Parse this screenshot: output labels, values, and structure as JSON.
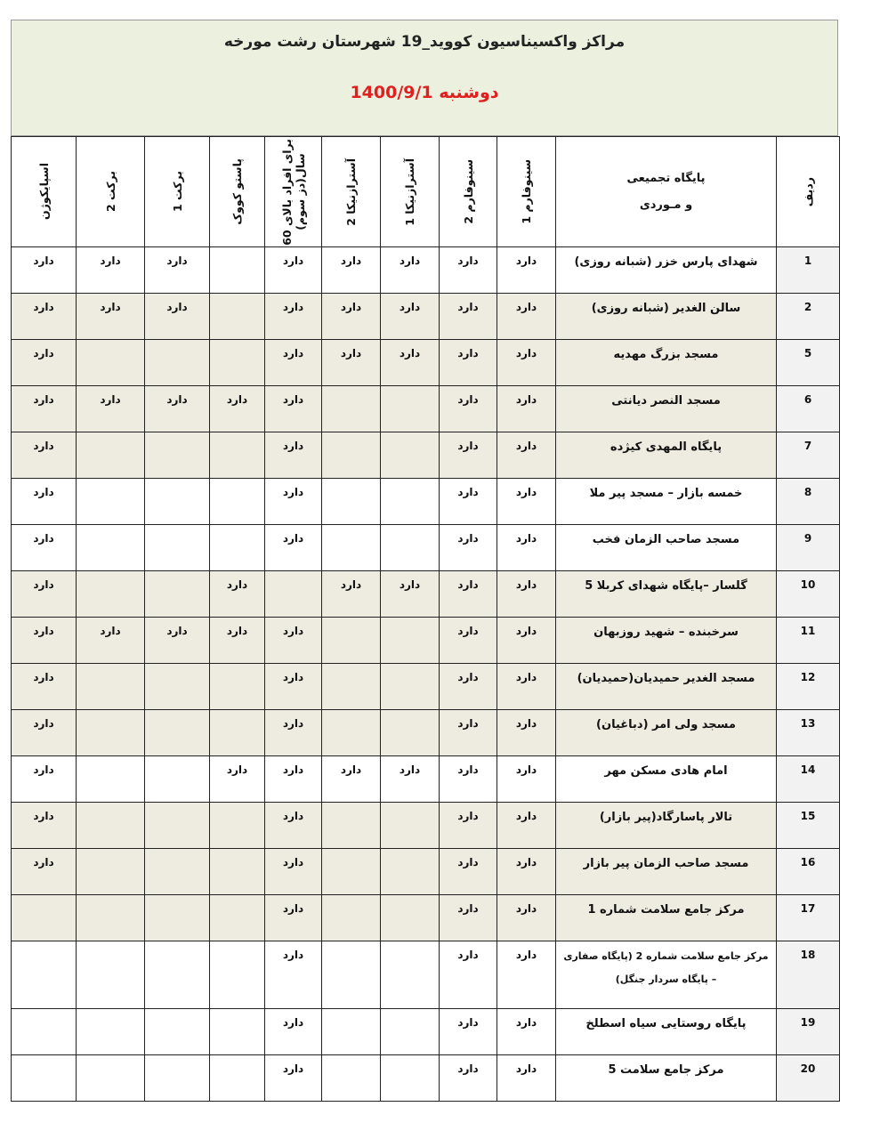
{
  "title": "مراکز واکسیناسیون کووید_19 شهرستان رشت مورخه",
  "date": "دوشنبه 1400/9/1",
  "headers": [
    "ردیف",
    "پایگاه تجمیعی\n\nو مـوردی",
    "سینوفارم 1",
    "سینوفارم 2",
    "آسترازنیکا 1",
    "آسترازنیکا 2",
    "برای افراد بالای 60\nسال(دز سوم)",
    "پاستو کووک",
    "برکت 1",
    "برکت 2",
    "اسپایکوژن"
  ],
  "mark": "دارد",
  "colors": {
    "title_bg": "#ebf1de",
    "date": "#e02020",
    "row_shade": "#eeebe0"
  },
  "rows": [
    {
      "n": "1",
      "name": "شهدای پارس خزر (شبانه روزی)",
      "v": [
        1,
        1,
        1,
        1,
        1,
        0,
        1,
        1,
        1
      ]
    },
    {
      "n": "2",
      "name": "سالن الغدیر (شبانه روزی)",
      "v": [
        1,
        1,
        1,
        1,
        1,
        0,
        1,
        1,
        1
      ]
    },
    {
      "n": "5",
      "name": "مسجد بزرگ مهدیه",
      "v": [
        1,
        1,
        1,
        1,
        1,
        0,
        0,
        0,
        1
      ]
    },
    {
      "n": "6",
      "name": "مسجد النصر دیانتی",
      "v": [
        1,
        1,
        0,
        0,
        1,
        1,
        1,
        1,
        1
      ]
    },
    {
      "n": "7",
      "name": "پایگاه المهدی کیژده",
      "v": [
        1,
        1,
        0,
        0,
        1,
        0,
        0,
        0,
        1
      ]
    },
    {
      "n": "8",
      "name": "خمسه بازار – مسجد پیر ملا",
      "v": [
        1,
        1,
        0,
        0,
        1,
        0,
        0,
        0,
        1
      ]
    },
    {
      "n": "9",
      "name": "مسجد صاحب الزمان فخب",
      "v": [
        1,
        1,
        0,
        0,
        1,
        0,
        0,
        0,
        1
      ]
    },
    {
      "n": "10",
      "name": "گلسار –پایگاه شهدای کربلا 5",
      "v": [
        1,
        1,
        1,
        1,
        0,
        1,
        0,
        0,
        1
      ]
    },
    {
      "n": "11",
      "name": "سرخبنده – شهید روزبهان",
      "v": [
        1,
        1,
        0,
        0,
        1,
        1,
        1,
        1,
        1
      ]
    },
    {
      "n": "12",
      "name": "مسجد الغدیر حمیدیان(حمیدیان)",
      "v": [
        1,
        1,
        0,
        0,
        1,
        0,
        0,
        0,
        1
      ]
    },
    {
      "n": "13",
      "name": "مسجد ولی امر (دباغیان)",
      "v": [
        1,
        1,
        0,
        0,
        1,
        0,
        0,
        0,
        1
      ]
    },
    {
      "n": "14",
      "name": "امام هادی مسکن مهر",
      "v": [
        1,
        1,
        1,
        1,
        1,
        1,
        0,
        0,
        1
      ]
    },
    {
      "n": "15",
      "name": "تالار پاسارگاد(پیر بازار)",
      "v": [
        1,
        1,
        0,
        0,
        1,
        0,
        0,
        0,
        1
      ]
    },
    {
      "n": "16",
      "name": "مسجد صاحب الزمان پیر بازار",
      "v": [
        1,
        1,
        0,
        0,
        1,
        0,
        0,
        0,
        1
      ]
    },
    {
      "n": "17",
      "name": "مرکز جامع سلامت شماره 1",
      "v": [
        1,
        1,
        0,
        0,
        1,
        0,
        0,
        0,
        0
      ]
    },
    {
      "n": "18",
      "name": "مرکز جامع سلامت شماره 2 (پایگاه صفاری – پایگاه سردار جنگل)",
      "v": [
        1,
        1,
        0,
        0,
        1,
        0,
        0,
        0,
        0
      ]
    },
    {
      "n": "19",
      "name": "پایگاه روستایی سیاه اسطلخ",
      "v": [
        1,
        1,
        0,
        0,
        1,
        0,
        0,
        0,
        0
      ]
    },
    {
      "n": "20",
      "name": "مرکز جامع سلامت 5",
      "v": [
        1,
        1,
        0,
        0,
        1,
        0,
        0,
        0,
        0
      ]
    }
  ]
}
